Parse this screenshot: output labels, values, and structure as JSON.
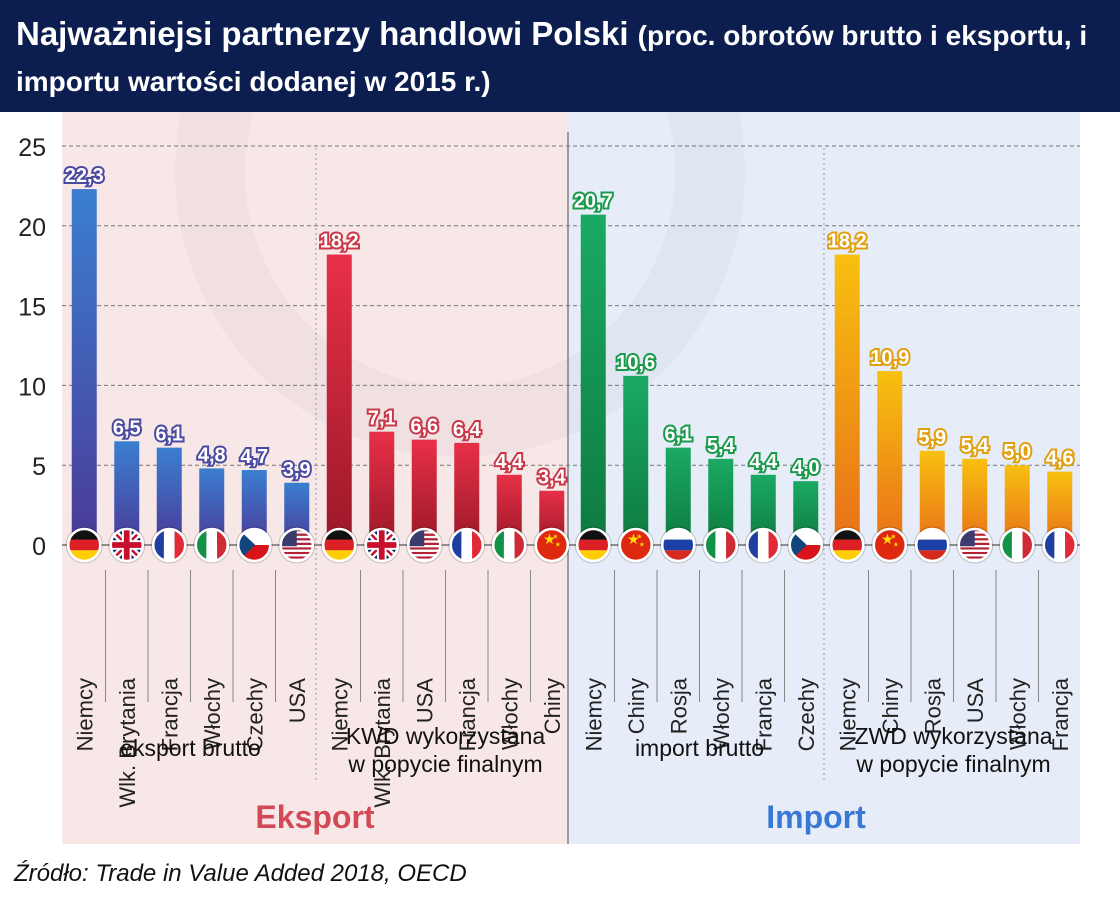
{
  "title": {
    "main": "Najważniejsi partnerzy handlowi Polski",
    "sub": "(proc. obrotów brutto i eksportu, i importu wartości dodanej w 2015 r.)"
  },
  "source": "Źródło: Trade in Value Added 2018, OECD",
  "colors": {
    "header_bg": "#0c1e4f",
    "export_bg": "#f8e7e7",
    "import_bg": "#e6edf8",
    "export_label": "#d24a57",
    "import_label": "#3a79d3"
  },
  "chart_data": {
    "type": "bar",
    "ylim": [
      0,
      25
    ],
    "yticks": [
      0,
      5,
      10,
      15,
      20,
      25
    ],
    "grid": true,
    "sections": [
      {
        "name": "Eksport",
        "groups": [
          0,
          1
        ]
      },
      {
        "name": "Import",
        "groups": [
          2,
          3
        ]
      }
    ],
    "groups": [
      {
        "label_lines": [
          "eksport brutto"
        ],
        "color": "blue",
        "categories": [
          "Niemcy",
          "Wlk. Brytania",
          "Francja",
          "Włochy",
          "Czechy",
          "USA"
        ],
        "values": [
          22.3,
          6.5,
          6.1,
          4.8,
          4.7,
          3.9
        ],
        "value_labels": [
          "22,3",
          "6,5",
          "6,1",
          "4,8",
          "4,7",
          "3,9"
        ],
        "flags": [
          "germany-flag",
          "uk-flag",
          "france-flag",
          "italy-flag",
          "czech-flag",
          "usa-flag"
        ]
      },
      {
        "label_lines": [
          "KWD wykorzystana",
          "w popycie finalnym"
        ],
        "color": "red",
        "categories": [
          "Niemcy",
          "Wlk. Brytania",
          "USA",
          "Francja",
          "Włochy",
          "Chiny"
        ],
        "values": [
          18.2,
          7.1,
          6.6,
          6.4,
          4.4,
          3.4
        ],
        "value_labels": [
          "18,2",
          "7,1",
          "6,6",
          "6,4",
          "4,4",
          "3,4"
        ],
        "flags": [
          "germany-flag",
          "uk-flag",
          "usa-flag",
          "france-flag",
          "italy-flag",
          "china-flag"
        ]
      },
      {
        "label_lines": [
          "import brutto"
        ],
        "color": "green",
        "categories": [
          "Niemcy",
          "Chiny",
          "Rosja",
          "Włochy",
          "Francja",
          "Czechy"
        ],
        "values": [
          20.7,
          10.6,
          6.1,
          5.4,
          4.4,
          4.0
        ],
        "value_labels": [
          "20,7",
          "10,6",
          "6,1",
          "5,4",
          "4,4",
          "4,0"
        ],
        "flags": [
          "germany-flag",
          "china-flag",
          "russia-flag",
          "italy-flag",
          "france-flag",
          "czech-flag"
        ]
      },
      {
        "label_lines": [
          "ZWD wykorzystana",
          "w popycie finalnym"
        ],
        "color": "orange",
        "categories": [
          "Niemcy",
          "Chiny",
          "Rosja",
          "USA",
          "Włochy",
          "Francja"
        ],
        "values": [
          18.2,
          10.9,
          5.9,
          5.4,
          5.0,
          4.6
        ],
        "value_labels": [
          "18,2",
          "10,9",
          "5,9",
          "5,4",
          "5,0",
          "4,6"
        ],
        "flags": [
          "germany-flag",
          "china-flag",
          "russia-flag",
          "usa-flag",
          "italy-flag",
          "france-flag"
        ]
      }
    ]
  }
}
